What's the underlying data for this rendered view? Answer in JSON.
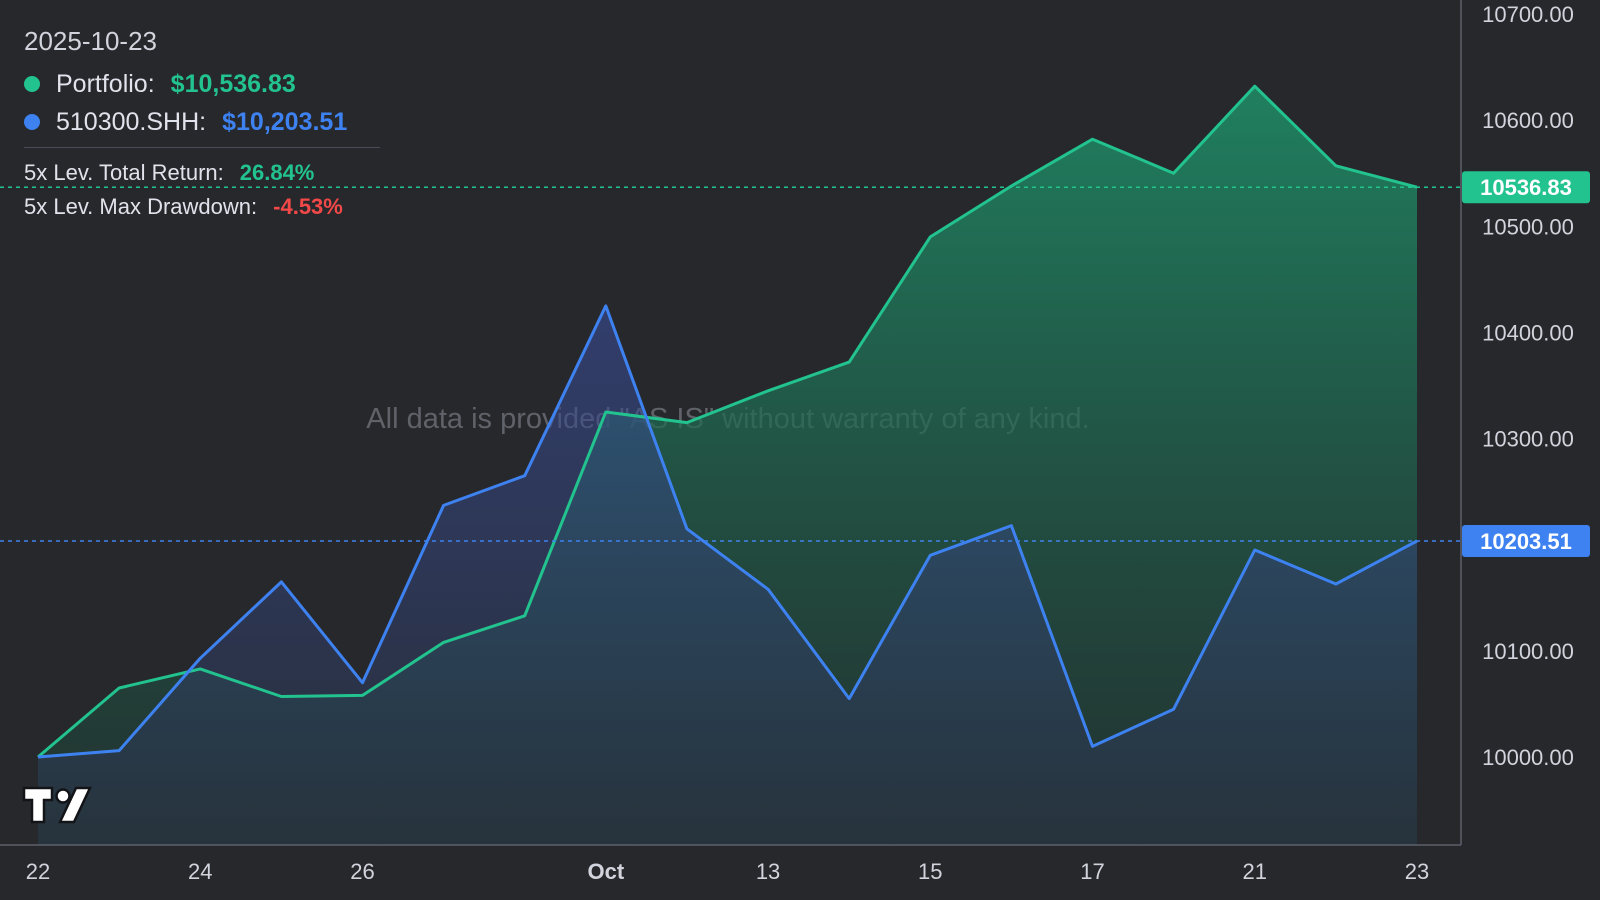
{
  "legend": {
    "date": "2025-10-23",
    "portfolio_label": "Portfolio:",
    "portfolio_value": "$10,536.83",
    "benchmark_label": "510300.SHH:",
    "benchmark_value": "$10,203.51",
    "total_return_label": "5x Lev. Total Return:",
    "total_return_value": "26.84%",
    "max_drawdown_label": "5x Lev. Max Drawdown:",
    "max_drawdown_value": "-4.53%"
  },
  "watermark": "All data is provided \"AS IS\" without warranty of any kind.",
  "colors": {
    "background": "#27282c",
    "portfolio": "#22c38e",
    "benchmark": "#3d82f0",
    "negative": "#f24848",
    "axis_text": "#d1d4dc",
    "grid_line": "#5d606b"
  },
  "logo_icon": "tradingview-logo-icon",
  "chart_data": {
    "type": "area",
    "x_tick_labels": [
      "22",
      "24",
      "26",
      "Oct",
      "13",
      "15",
      "17",
      "21",
      "23"
    ],
    "x_tick_index": [
      0,
      2,
      4,
      7,
      9,
      11,
      13,
      15,
      17
    ],
    "y_ticks": [
      10000,
      10100,
      10200,
      10300,
      10400,
      10500,
      10600,
      10700
    ],
    "y_tick_labels": [
      "10000.00",
      "10100.00",
      "10300.00",
      "10400.00",
      "10500.00",
      "10600.00",
      "10700.00"
    ],
    "ylim": [
      9915,
      10715
    ],
    "grid": false,
    "series": [
      {
        "name": "Portfolio",
        "values": [
          10000,
          10065,
          10083,
          10057,
          10058,
          10108,
          10133,
          10325,
          10315,
          10345,
          10372,
          10490,
          10538,
          10582,
          10550,
          10632,
          10557,
          10536.83
        ]
      },
      {
        "name": "510300.SHH",
        "values": [
          10000,
          10006,
          10093,
          10165,
          10070,
          10237,
          10265,
          10425,
          10215,
          10158,
          10055,
          10190,
          10218,
          10010,
          10045,
          10195,
          10163,
          10203.51
        ]
      }
    ],
    "last_value_labels": [
      "10536.83",
      "10203.51"
    ]
  }
}
